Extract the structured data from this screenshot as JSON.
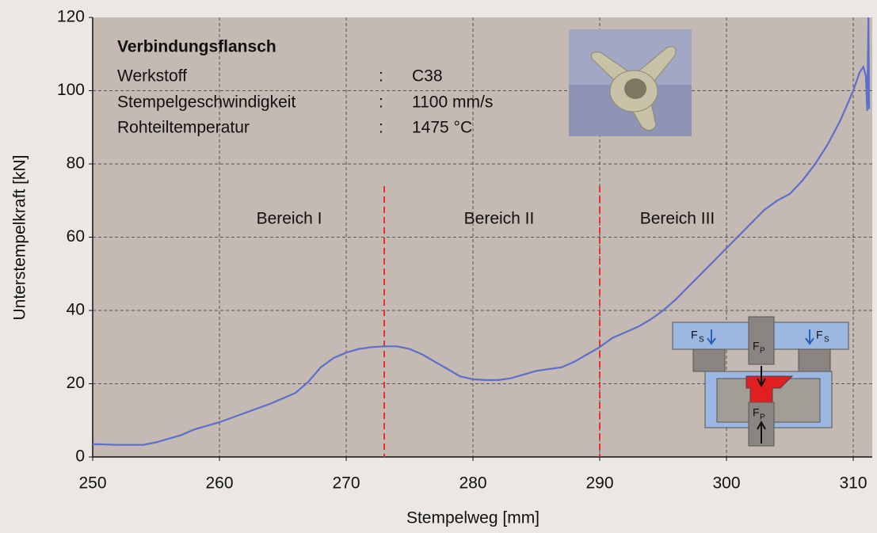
{
  "chart_data": {
    "type": "line",
    "x_label": "Stempelweg [mm]",
    "y_label": "Unterstempelkraft [kN]",
    "xlim": [
      250,
      311.5
    ],
    "ylim": [
      0,
      120
    ],
    "xticks": [
      250,
      260,
      270,
      280,
      290,
      300,
      310
    ],
    "yticks": [
      0,
      20,
      40,
      60,
      80,
      100,
      120
    ],
    "grid": true,
    "series": [
      {
        "name": "Unterstempelkraft",
        "color": "#5b6fcb",
        "x": [
          250,
          252,
          254,
          255,
          256,
          257,
          258,
          260,
          262,
          264,
          266,
          267,
          268,
          269,
          270,
          271,
          272,
          273,
          274,
          275,
          276,
          277,
          278,
          279,
          280,
          281,
          282,
          283,
          284,
          285,
          286,
          287,
          288,
          289,
          290,
          291,
          292,
          293,
          294,
          295,
          296,
          297,
          298,
          299,
          300,
          301,
          302,
          303,
          304,
          305,
          306,
          307,
          308,
          309,
          310,
          310.5,
          310.8,
          311,
          311.1,
          311.2,
          311.25
        ],
        "values": [
          3.5,
          3.3,
          3.3,
          4,
          5,
          6,
          7.5,
          9.5,
          12,
          14.5,
          17.5,
          20.5,
          24.5,
          27,
          28.5,
          29.5,
          30,
          30.2,
          30.2,
          29.5,
          28,
          26,
          24,
          22,
          21.2,
          21,
          21,
          21.5,
          22.5,
          23.5,
          24,
          24.5,
          26,
          28,
          30,
          32.5,
          34,
          35.5,
          37.5,
          40,
          43,
          46.5,
          50,
          53.5,
          57,
          60.5,
          64,
          67.5,
          70,
          71.8,
          75.5,
          80,
          85.4,
          92,
          100,
          105,
          106.5,
          104,
          94.5,
          120,
          95
        ]
      }
    ],
    "vlines": [
      273,
      290
    ],
    "vline_color": "#e8312a",
    "annotations": [
      "Bereich I",
      "Bereich II",
      "Bereich III"
    ],
    "info": {
      "title": "Verbindungsflansch",
      "rows": [
        [
          "Werkstoff",
          ":",
          "C38"
        ],
        [
          "Stempelgeschwindigkeit",
          ":",
          "1100 mm/s"
        ],
        [
          "Rohteiltemperatur",
          ":",
          "1475 °C"
        ]
      ]
    },
    "diagram_labels": {
      "force_main": "F",
      "s": "S",
      "p": "P"
    }
  }
}
